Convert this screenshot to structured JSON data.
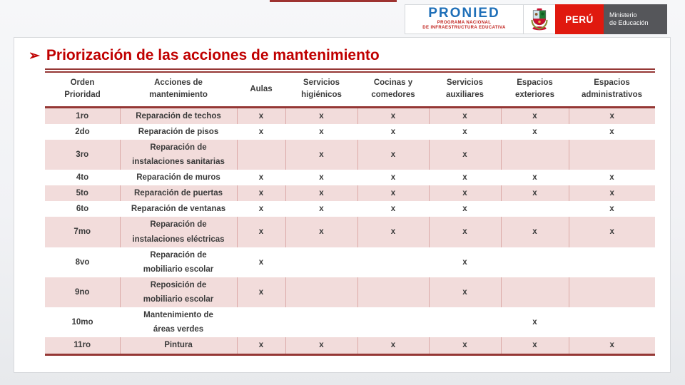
{
  "brand_bar": {
    "pronied": {
      "name": "PRONIED",
      "subtitle1": "PROGRAMA NACIONAL",
      "subtitle2": "DE INFRAESTRUCTURA EDUCATIVA"
    },
    "peru_label": "PERÚ",
    "ministry_label": "Ministerio\nde Educación",
    "colors": {
      "pronied_blue": "#1e6fb8",
      "subtitle_red": "#c0211c",
      "peru_red": "#e0190f",
      "ministry_gray": "#55565a"
    }
  },
  "slide": {
    "bullet": "➢",
    "title": "Priorización de las acciones de mantenimiento",
    "title_color": "#c00000",
    "table_border_color": "#953735",
    "band_fill_color": "#f2dcdb"
  },
  "table": {
    "columns": [
      {
        "id": "orden",
        "label": "Orden\nPrioridad"
      },
      {
        "id": "accion",
        "label": "Acciones de\nmantenimiento"
      },
      {
        "id": "aulas",
        "label": "Aulas"
      },
      {
        "id": "servicios-higienicos",
        "label": "Servicios\nhigiénicos"
      },
      {
        "id": "cocinas-comedores",
        "label": "Cocinas y\ncomedores"
      },
      {
        "id": "servicios-auxiliares",
        "label": "Servicios\nauxiliares"
      },
      {
        "id": "espacios-exteriores",
        "label": "Espacios\nexteriores"
      },
      {
        "id": "espacios-administrativos",
        "label": "Espacios\nadministrativos"
      }
    ],
    "rows": [
      {
        "orden": "1ro",
        "accion": "Reparación de techos",
        "marks": [
          "x",
          "x",
          "x",
          "x",
          "x",
          "x"
        ]
      },
      {
        "orden": "2do",
        "accion": "Reparación de pisos",
        "marks": [
          "x",
          "x",
          "x",
          "x",
          "x",
          "x"
        ]
      },
      {
        "orden": "3ro",
        "accion": "Reparación de\ninstalaciones sanitarias",
        "marks": [
          "",
          "x",
          "x",
          "x",
          "",
          ""
        ]
      },
      {
        "orden": "4to",
        "accion": "Reparación de muros",
        "marks": [
          "x",
          "x",
          "x",
          "x",
          "x",
          "x"
        ]
      },
      {
        "orden": "5to",
        "accion": "Reparación de puertas",
        "marks": [
          "x",
          "x",
          "x",
          "x",
          "x",
          "x"
        ]
      },
      {
        "orden": "6to",
        "accion": "Reparación de ventanas",
        "marks": [
          "x",
          "x",
          "x",
          "x",
          "",
          "x"
        ]
      },
      {
        "orden": "7mo",
        "accion": "Reparación de\ninstalaciones eléctricas",
        "marks": [
          "x",
          "x",
          "x",
          "x",
          "x",
          "x"
        ]
      },
      {
        "orden": "8vo",
        "accion": "Reparación de\nmobiliario escolar",
        "marks": [
          "x",
          "",
          "",
          "x",
          "",
          ""
        ]
      },
      {
        "orden": "9no",
        "accion": "Reposición de\nmobiliario escolar",
        "marks": [
          "x",
          "",
          "",
          "x",
          "",
          ""
        ]
      },
      {
        "orden": "10mo",
        "accion": "Mantenimiento de\náreas verdes",
        "marks": [
          "",
          "",
          "",
          "",
          "x",
          ""
        ]
      },
      {
        "orden": "11ro",
        "accion": "Pintura",
        "marks": [
          "x",
          "x",
          "x",
          "x",
          "x",
          "x"
        ]
      }
    ]
  }
}
